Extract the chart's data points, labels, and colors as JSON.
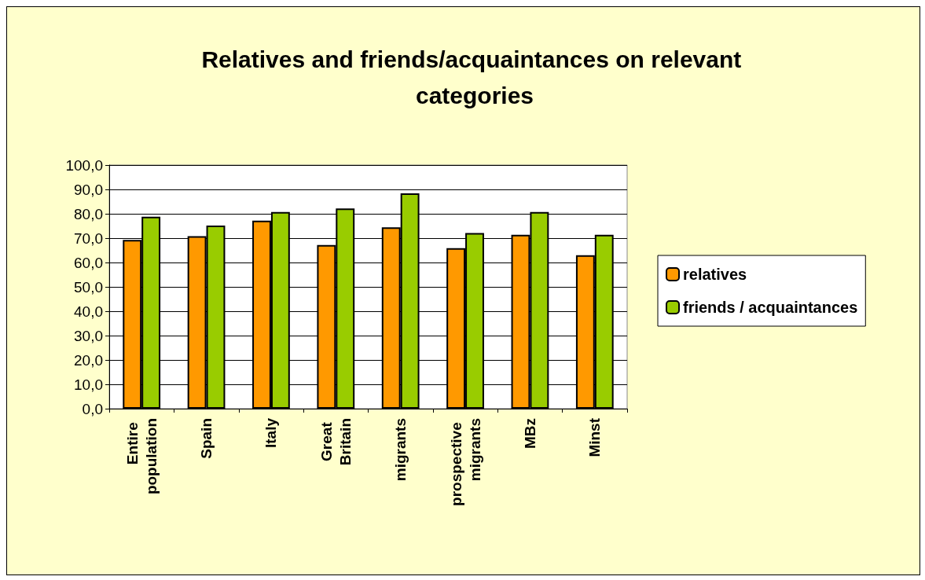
{
  "chart_data": {
    "type": "bar",
    "title": "Relatives and friends/acquaintances on relevant categories",
    "categories": [
      "Entire population",
      "Spain",
      "Italy",
      "Great Britain",
      "migrants",
      "prospective migrants",
      "MBz",
      "Minst"
    ],
    "series": [
      {
        "name": "relatives",
        "color": "#ff9900",
        "values": [
          69.3,
          70.8,
          77.2,
          67.2,
          74.4,
          65.9,
          71.4,
          63.0
        ]
      },
      {
        "name": "friends / acquaintances",
        "color": "#99cc00",
        "values": [
          78.8,
          75.2,
          80.7,
          82.2,
          88.4,
          72.1,
          80.7,
          71.4
        ]
      }
    ],
    "ylim": [
      0,
      100
    ],
    "yticks": [
      {
        "value": 0,
        "label": "0,0"
      },
      {
        "value": 10,
        "label": "10,0"
      },
      {
        "value": 20,
        "label": "20,0"
      },
      {
        "value": 30,
        "label": "30,0"
      },
      {
        "value": 40,
        "label": "40,0"
      },
      {
        "value": 50,
        "label": "50,0"
      },
      {
        "value": 60,
        "label": "60,0"
      },
      {
        "value": 70,
        "label": "70,0"
      },
      {
        "value": 80,
        "label": "80,0"
      },
      {
        "value": 90,
        "label": "90,0"
      },
      {
        "value": 100,
        "label": "100,0"
      }
    ],
    "grid": "y",
    "legend": "right"
  }
}
